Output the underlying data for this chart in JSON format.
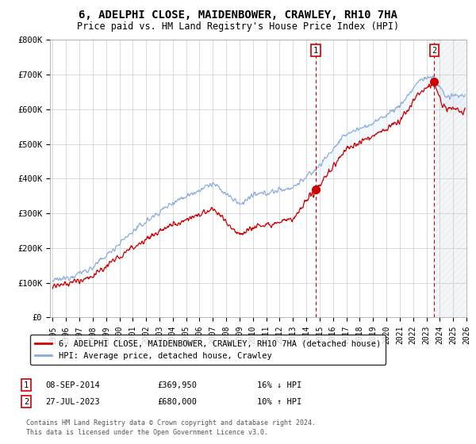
{
  "title": "6, ADELPHI CLOSE, MAIDENBOWER, CRAWLEY, RH10 7HA",
  "subtitle": "Price paid vs. HM Land Registry's House Price Index (HPI)",
  "ylim": [
    0,
    800000
  ],
  "yticks": [
    0,
    100000,
    200000,
    300000,
    400000,
    500000,
    600000,
    700000,
    800000
  ],
  "ytick_labels": [
    "£0",
    "£100K",
    "£200K",
    "£300K",
    "£400K",
    "£500K",
    "£600K",
    "£700K",
    "£800K"
  ],
  "xstart_year": 1995,
  "xend_year": 2026,
  "sale1_year": 2014.7,
  "sale1_price": 369950,
  "sale1_label": "1",
  "sale1_date": "08-SEP-2014",
  "sale1_price_str": "£369,950",
  "sale1_hpi_diff": "16% ↓ HPI",
  "sale2_year": 2023.58,
  "sale2_price": 680000,
  "sale2_label": "2",
  "sale2_date": "27-JUL-2023",
  "sale2_price_str": "£680,000",
  "sale2_hpi_diff": "10% ↑ HPI",
  "line_color_property": "#cc0000",
  "line_color_hpi": "#88aadd",
  "shade_color": "#ddeeff",
  "grid_color": "#cccccc",
  "title_fontsize": 10,
  "subtitle_fontsize": 8.5,
  "tick_fontsize": 7.5,
  "legend_label_property": "6, ADELPHI CLOSE, MAIDENBOWER, CRAWLEY, RH10 7HA (detached house)",
  "legend_label_hpi": "HPI: Average price, detached house, Crawley",
  "footer_line1": "Contains HM Land Registry data © Crown copyright and database right 2024.",
  "footer_line2": "This data is licensed under the Open Government Licence v3.0.",
  "footer_fontsize": 6.0
}
